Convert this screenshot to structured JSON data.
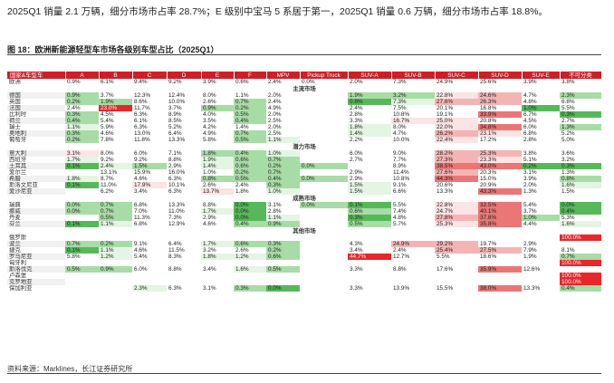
{
  "intro_text": "2025Q1 销量 2.1 万辆，细分市场市占率 28.7%；E 级别中宝马 5 系居于第一，2025Q1 销量 0.6 万辆，细分市场市占率 18.8%。",
  "figure_title": "图 18：欧洲新能源轻型车市场各级别车型占比（2025Q1）",
  "source": "资料来源：Marklines，长江证券研究所",
  "columns": [
    "国家&车型车",
    "A",
    "B",
    "C",
    "D",
    "E",
    "F",
    "MPV",
    "Pickup Truck",
    "SUV-A",
    "SUV-B",
    "SUV-C",
    "SUV-D",
    "SUV-E",
    "不可分类"
  ],
  "shade_colors": {
    "g1": "#e4f5e3",
    "g2": "#a8dca6",
    "g3": "#57b85a",
    "r1": "#fbe4e4",
    "r2": "#f5b4b4",
    "r3": "#ea7676",
    "rr": "#e8272a",
    "header": "#cf1f26"
  },
  "rows": [
    {
      "type": "data",
      "name": "欧洲",
      "cells": [
        "0.9%",
        "6.1%",
        "9.4%",
        "9.2%",
        "3.9%",
        "0.6%",
        "2.4%",
        "0.0%",
        "2.0%",
        "7.3%",
        "24.9%",
        "25.6%",
        "3.9%",
        "3.8%"
      ],
      "shade": [
        "",
        "",
        "",
        "",
        "",
        "",
        "",
        "",
        "",
        "",
        "",
        "",
        "",
        ""
      ]
    },
    {
      "type": "section",
      "label": "主流市场"
    },
    {
      "type": "data",
      "name": "德国",
      "cells": [
        "0.9%",
        "3.7%",
        "12.3%",
        "12.4%",
        "8.0%",
        "1.1%",
        "2.0%",
        "",
        "1.9%",
        "3.2%",
        "22.8%",
        "24.6%",
        "4.7%",
        "2.3%"
      ],
      "shade": [
        "g2",
        "",
        "",
        "",
        "",
        "",
        "",
        "",
        "g2",
        "g2",
        "r1",
        "r2",
        "",
        "g2"
      ]
    },
    {
      "type": "data",
      "name": "英国",
      "cells": [
        "0.2%",
        "1.9%",
        "8.6%",
        "10.0%",
        "2.6%",
        "0.7%",
        "2.4%",
        "",
        "0.8%",
        "7.3%",
        "27.6%",
        "26.3%",
        "4.8%",
        "6.8%"
      ],
      "shade": [
        "g2",
        "g2",
        "",
        "",
        "",
        "g2",
        "",
        "",
        "g3",
        "g1",
        "r2",
        "r2",
        "",
        ""
      ]
    },
    {
      "type": "data",
      "name": "法国",
      "cells": [
        "2.4%",
        "23.0%",
        "11.7%",
        "3.7%",
        "0.9%",
        "0.2%",
        "4.9%",
        "",
        "2.4%",
        "7.5%",
        "20.1%",
        "16.8%",
        "1.0%",
        "5.5%"
      ],
      "shade": [
        "",
        "rr",
        "",
        "",
        "g2",
        "g2",
        "",
        "",
        "",
        "",
        "",
        "",
        "g3",
        ""
      ]
    },
    {
      "type": "data",
      "name": "比利时",
      "cells": [
        "0.3%",
        "4.5%",
        "6.3%",
        "8.9%",
        "4.0%",
        "0.5%",
        "2.0%",
        "",
        "2.8%",
        "10.8%",
        "19.1%",
        "33.9%",
        "6.7%",
        "0.3%"
      ],
      "shade": [
        "g2",
        "",
        "",
        "",
        "",
        "g2",
        "",
        "",
        "",
        "",
        "",
        "r3",
        "",
        "g3"
      ]
    },
    {
      "type": "data",
      "name": "荷兰",
      "cells": [
        "0.4%",
        "5.4%",
        "6.1%",
        "8.5%",
        "3.5%",
        "0.4%",
        "2.5%",
        "",
        "3.3%",
        "16.7%",
        "25.0%",
        "20.8%",
        "4.5%",
        "2.7%"
      ],
      "shade": [
        "g2",
        "",
        "",
        "",
        "",
        "g2",
        "",
        "",
        "",
        "r1",
        "r1",
        "",
        "",
        ""
      ]
    },
    {
      "type": "data",
      "name": "瑞士",
      "cells": [
        "1.1%",
        "5.9%",
        "6.3%",
        "5.2%",
        "4.2%",
        "1.4%",
        "2.0%",
        "",
        "1.8%",
        "8.0%",
        "22.0%",
        "34.8%",
        "6.0%",
        "1.3%"
      ],
      "shade": [
        "g1",
        "",
        "",
        "",
        "",
        "",
        "",
        "",
        "g1",
        "",
        "r1",
        "r3",
        "",
        "g2"
      ]
    },
    {
      "type": "data",
      "name": "奥地利",
      "cells": [
        "0.3%",
        "4.6%",
        "13.0%",
        "6.4%",
        "4.9%",
        "0.7%",
        "2.5%",
        "",
        "1.4%",
        "4.7%",
        "26.2%",
        "23.1%",
        "6.8%",
        "5.2%"
      ],
      "shade": [
        "g2",
        "",
        "",
        "",
        "",
        "g2",
        "",
        "",
        "g1",
        "",
        "r2",
        "r1",
        "",
        ""
      ]
    },
    {
      "type": "data",
      "name": "葡萄牙",
      "cells": [
        "0.2%",
        "7.8%",
        "11.8%",
        "13.3%",
        "5.8%",
        "0.5%",
        "1.1%",
        "",
        "2.2%",
        "10.0%",
        "22.4%",
        "17.2%",
        "2.8%",
        "5.0%"
      ],
      "shade": [
        "g2",
        "",
        "",
        "",
        "",
        "g2",
        "g1",
        "",
        "",
        "",
        "r1",
        "",
        "",
        ""
      ]
    },
    {
      "type": "section",
      "label": "潜力市场"
    },
    {
      "type": "data",
      "name": "意大利",
      "cells": [
        "3.1%",
        "8.0%",
        "6.0%",
        "7.1%",
        "1.8%",
        "0.4%",
        "1.0%",
        "",
        "6.0%",
        "9.0%",
        "28.2%",
        "25.3%",
        "3.8%",
        "3.6%"
      ],
      "shade": [
        "r1",
        "",
        "",
        "",
        "g2",
        "g2",
        "g1",
        "",
        "",
        "",
        "r2",
        "r2",
        "",
        ""
      ]
    },
    {
      "type": "data",
      "name": "西班牙",
      "cells": [
        "1.7%",
        "9.2%",
        "9.2%",
        "8.8%",
        "1.9%",
        "0.6%",
        "0.7%",
        "",
        "2.7%",
        "7.7%",
        "27.3%",
        "23.3%",
        "5.1%",
        "3.2%"
      ],
      "shade": [
        "g1",
        "",
        "",
        "",
        "g1",
        "g2",
        "g2",
        "",
        "",
        "",
        "r2",
        "r1",
        "",
        ""
      ]
    },
    {
      "type": "data",
      "name": "土耳其",
      "cells": [
        "0.1%",
        "2.4%",
        "1.5%",
        "2.9%",
        "1.4%",
        "0.6%",
        "0.2%",
        "0.0%",
        "",
        "8.9%",
        "38.5%",
        "43.0%",
        "0.2%",
        "0.3%"
      ],
      "shade": [
        "g3",
        "g1",
        "g2",
        "",
        "g1",
        "g2",
        "g2",
        "g2",
        "",
        "",
        "r3",
        "r3",
        "g3",
        "g3"
      ]
    },
    {
      "type": "data",
      "name": "爱尔兰",
      "cells": [
        "",
        "13.1%",
        "15.9%",
        "16.0%",
        "1.0%",
        "0.2%",
        "0.7%",
        "",
        "2.9%",
        "11.4%",
        "27.6%",
        "20.3%",
        "3.1%",
        "1.3%"
      ],
      "shade": [
        "",
        "",
        "",
        "",
        "",
        "g2",
        "g2",
        "",
        "",
        "",
        "r2",
        "",
        "",
        ""
      ]
    },
    {
      "type": "data",
      "name": "希腊",
      "cells": [
        "1.8%",
        "8.7%",
        "4.6%",
        "6.3%",
        "0.8%",
        "0.5%",
        "0.4%",
        "0.0%",
        "2.9%",
        "10.8%",
        "44.3%",
        "15.0%",
        "3.9%",
        "0.8%"
      ],
      "shade": [
        "g1",
        "",
        "",
        "",
        "g2",
        "g2",
        "g2",
        "g2",
        "",
        "",
        "r3",
        "",
        "",
        "g2"
      ]
    },
    {
      "type": "data",
      "name": "斯洛文尼亚",
      "cells": [
        "0.1%",
        "11.0%",
        "17.9%",
        "10.1%",
        "2.6%",
        "2.4%",
        "0.3%",
        "",
        "1.5%",
        "9.1%",
        "20.6%",
        "20.9%",
        "2.0%",
        "1.6%"
      ],
      "shade": [
        "g3",
        "",
        "r1",
        "",
        "",
        "",
        "g2",
        "",
        "g1",
        "",
        "",
        "",
        "",
        "g1"
      ]
    },
    {
      "type": "data",
      "name": "爱沙尼亚",
      "cells": [
        "",
        "6.2%",
        "3.4%",
        "6.3%",
        "13.7%",
        "1.8%",
        "1.0%",
        "",
        "1.5%",
        "6.6%",
        "13.3%",
        "43.3%",
        "1.3%",
        "1.5%"
      ],
      "shade": [
        "",
        "",
        "",
        "",
        "r1",
        "",
        "g1",
        "",
        "g1",
        "",
        "",
        "r3",
        "",
        ""
      ]
    },
    {
      "type": "section",
      "label": "成熟市场"
    },
    {
      "type": "data",
      "name": "瑞典",
      "cells": [
        "0.0%",
        "0.7%",
        "6.8%",
        "13.3%",
        "8.8%",
        "0.0%",
        "3.1%",
        "0.0%",
        "0.1%",
        "5.5%",
        "22.8%",
        "32.5%",
        "5.4%",
        "0.0%"
      ],
      "shade": [
        "g2",
        "g2",
        "",
        "",
        "",
        "g3",
        "",
        "g2",
        "g3",
        "",
        "r1",
        "r3",
        "",
        "g3"
      ]
    },
    {
      "type": "data",
      "name": "挪威",
      "cells": [
        "0.0%",
        "0.7%",
        "7.0%",
        "11.0%",
        "1.7%",
        "0.0%",
        "2.8%",
        "",
        "0.6%",
        "7.4%",
        "24.7%",
        "40.1%",
        "3.7%",
        "0.4%"
      ],
      "shade": [
        "g2",
        "g2",
        "",
        "",
        "g1",
        "g3",
        "",
        "",
        "g2",
        "",
        "r1",
        "r3",
        "",
        "g3"
      ]
    },
    {
      "type": "data",
      "name": "丹麦",
      "cells": [
        "",
        "0.5%",
        "11.3%",
        "7.3%",
        "2.9%",
        "0.0%",
        "1.1%",
        "",
        "0.3%",
        "4.8%",
        "27.8%",
        "37.8%",
        "1.0%",
        "5.3%"
      ],
      "shade": [
        "",
        "g2",
        "",
        "",
        "",
        "g3",
        "g1",
        "",
        "g3",
        "",
        "r2",
        "r3",
        "g2",
        ""
      ]
    },
    {
      "type": "data",
      "name": "芬兰",
      "cells": [
        "0.1%",
        "1.1%",
        "6.8%",
        "12.9%",
        "4.6%",
        "0.4%",
        "0.9%",
        "",
        "0.5%",
        "5.7%",
        "25.3%",
        "35.8%",
        "4.4%",
        "1.6%"
      ],
      "shade": [
        "g3",
        "g1",
        "",
        "",
        "",
        "g2",
        "g2",
        "",
        "g2",
        "",
        "r1",
        "r3",
        "",
        "g1"
      ]
    },
    {
      "type": "section",
      "label": "其他市场"
    },
    {
      "type": "data",
      "name": "俄罗斯",
      "cells": [
        "",
        "",
        "",
        "",
        "",
        "",
        "",
        "",
        "",
        "",
        "",
        "",
        "",
        "100.0%"
      ],
      "shade": [
        "",
        "",
        "",
        "",
        "",
        "",
        "",
        "",
        "",
        "",
        "",
        "",
        "",
        "rr"
      ]
    },
    {
      "type": "data",
      "name": "波兰",
      "cells": [
        "0.7%",
        "0.2%",
        "9.1%",
        "6.4%",
        "1.7%",
        "0.6%",
        "0.3%",
        "",
        "4.3%",
        "24.9%",
        "29.2%",
        "19.7%",
        "2.9%",
        ""
      ],
      "shade": [
        "g2",
        "g2",
        "",
        "",
        "g1",
        "g2",
        "g2",
        "",
        "",
        "r2",
        "r2",
        "",
        "",
        ""
      ]
    },
    {
      "type": "data",
      "name": "捷克",
      "cells": [
        "0.1%",
        "1.1%",
        "4.6%",
        "11.5%",
        "3.2%",
        "2.6%",
        "0.2%",
        "",
        "3.4%",
        "2.4%",
        "25.4%",
        "27.5%",
        "7.9%",
        "8.1%"
      ],
      "shade": [
        "g3",
        "g1",
        "",
        "",
        "",
        "",
        "g2",
        "",
        "",
        "",
        "r2",
        "r2",
        "",
        ""
      ]
    },
    {
      "type": "data",
      "name": "罗马尼亚",
      "cells": [
        "5.8%",
        "1.2%",
        "5.4%",
        "8.3%",
        "1.8%",
        "1.2%",
        "0.6%",
        "",
        "44.7%",
        "12.7%",
        "5.5%",
        "18.6%",
        "1.9%",
        "0.7%"
      ],
      "shade": [
        "",
        "g1",
        "",
        "",
        "g1",
        "g1",
        "g2",
        "",
        "rr",
        "",
        "",
        "",
        "",
        "g2"
      ]
    },
    {
      "type": "data",
      "name": "匈牙利",
      "cells": [
        "",
        "",
        "",
        "",
        "",
        "",
        "",
        "",
        "",
        "",
        "",
        "",
        "",
        "100.0%"
      ],
      "shade": [
        "",
        "",
        "",
        "",
        "",
        "",
        "",
        "",
        "",
        "",
        "",
        "",
        "",
        "rr"
      ]
    },
    {
      "type": "data",
      "name": "斯洛伐克",
      "cells": [
        "0.5%",
        "0.9%",
        "6.0%",
        "8.8%",
        "3.4%",
        "1.6%",
        "0.5%",
        "",
        "3.3%",
        "8.8%",
        "17.6%",
        "35.9%",
        "12.6%",
        ""
      ],
      "shade": [
        "g2",
        "g2",
        "",
        "",
        "",
        "g1",
        "g2",
        "",
        "",
        "",
        "",
        "r3",
        "",
        ""
      ]
    },
    {
      "type": "data",
      "name": "卢森堡",
      "cells": [
        "",
        "",
        "",
        "",
        "",
        "",
        "",
        "",
        "",
        "",
        "",
        "",
        "",
        "100.0%"
      ],
      "shade": [
        "",
        "",
        "",
        "",
        "",
        "",
        "",
        "",
        "",
        "",
        "",
        "",
        "",
        "rr"
      ]
    },
    {
      "type": "data",
      "name": "克罗地亚",
      "cells": [
        "",
        "",
        "",
        "",
        "",
        "",
        "",
        "",
        "",
        "",
        "",
        "",
        "",
        "100.0%"
      ],
      "shade": [
        "",
        "",
        "",
        "",
        "",
        "",
        "",
        "",
        "",
        "",
        "",
        "",
        "",
        "rr"
      ]
    },
    {
      "type": "data",
      "name": "保加利亚",
      "cells": [
        "",
        "",
        "2.3%",
        "6.3%",
        "3.1%",
        "0.3%",
        "0.0%",
        "",
        "3.3%",
        "13.9%",
        "15.5%",
        "38.0%",
        "13.3%",
        "0.4%"
      ],
      "shade": [
        "",
        "",
        "g1",
        "",
        "",
        "g2",
        "g3",
        "",
        "",
        "",
        "",
        "r3",
        "",
        "g2"
      ]
    }
  ]
}
